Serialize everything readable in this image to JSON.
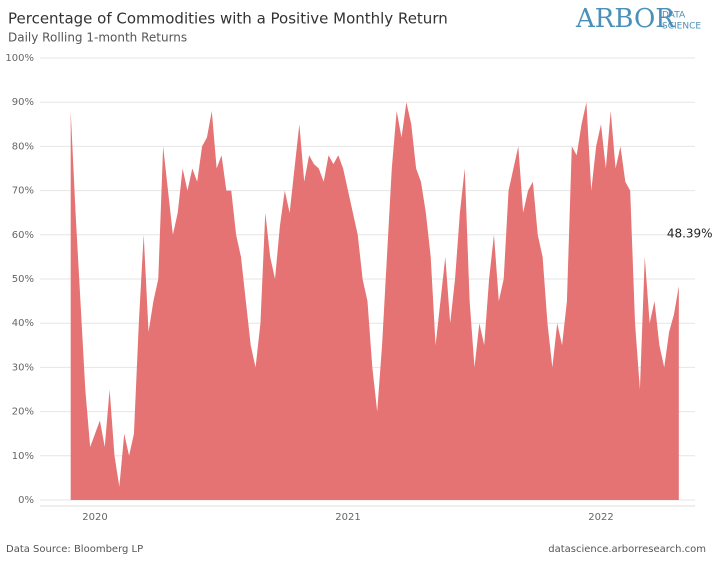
{
  "chart_data": {
    "type": "area",
    "title": "Percentage of Commodities with a Positive Monthly Return",
    "subtitle": "Daily Rolling 1-month Returns",
    "logo": {
      "main": "ARBOR",
      "sub": [
        "DATA",
        "SCIENCE"
      ]
    },
    "source": "Data Source: Bloomberg LP",
    "url": "datascience.arborresearch.com",
    "color": "#e57373",
    "grid": true,
    "ylim": [
      0,
      100
    ],
    "yticks": [
      {
        "value": 0,
        "label": "0%"
      },
      {
        "value": 10,
        "label": "10%"
      },
      {
        "value": 20,
        "label": "20%"
      },
      {
        "value": 30,
        "label": "30%"
      },
      {
        "value": 40,
        "label": "40%"
      },
      {
        "value": 50,
        "label": "50%"
      },
      {
        "value": 60,
        "label": "60%"
      },
      {
        "value": 70,
        "label": "70%"
      },
      {
        "value": 80,
        "label": "80%"
      },
      {
        "value": 90,
        "label": "90%"
      },
      {
        "value": 100,
        "label": "100%"
      }
    ],
    "categories": [
      null,
      null,
      null,
      null,
      null,
      "2020",
      null,
      null,
      null,
      null,
      null,
      null,
      null,
      null,
      null,
      null,
      null,
      null,
      null,
      null,
      null,
      null,
      null,
      null,
      null,
      null,
      null,
      null,
      null,
      null,
      null,
      null,
      null,
      null,
      null,
      null,
      null,
      null,
      null,
      null,
      null,
      null,
      null,
      null,
      null,
      null,
      null,
      null,
      null,
      null,
      null,
      null,
      null,
      null,
      null,
      null,
      null,
      "2021",
      null,
      null,
      null,
      null,
      null,
      null,
      null,
      null,
      null,
      null,
      null,
      null,
      null,
      null,
      null,
      null,
      null,
      null,
      null,
      null,
      null,
      null,
      null,
      null,
      null,
      null,
      null,
      null,
      null,
      null,
      null,
      null,
      null,
      null,
      null,
      null,
      null,
      null,
      null,
      null,
      null,
      null,
      null,
      null,
      null,
      null,
      null,
      null,
      null,
      null,
      null,
      "2022",
      null,
      null,
      null,
      null,
      null,
      null,
      null,
      null,
      null,
      null,
      null,
      null,
      null,
      null,
      null,
      null
    ],
    "values": [
      88,
      65,
      45,
      25,
      12,
      15,
      18,
      12,
      25,
      10,
      3,
      15,
      10,
      15,
      40,
      60,
      38,
      45,
      50,
      80,
      70,
      60,
      65,
      75,
      70,
      75,
      72,
      80,
      82,
      88,
      75,
      78,
      70,
      70,
      60,
      55,
      45,
      35,
      30,
      40,
      65,
      55,
      50,
      62,
      70,
      65,
      75,
      85,
      72,
      78,
      76,
      75,
      72,
      78,
      76,
      78,
      75,
      70,
      65,
      60,
      50,
      45,
      30,
      20,
      35,
      55,
      75,
      88,
      82,
      90,
      85,
      75,
      72,
      65,
      55,
      35,
      45,
      55,
      40,
      50,
      65,
      75,
      45,
      30,
      40,
      35,
      50,
      60,
      45,
      50,
      70,
      75,
      80,
      65,
      70,
      72,
      60,
      55,
      40,
      30,
      40,
      35,
      45,
      80,
      78,
      85,
      90,
      70,
      80,
      85,
      75,
      88,
      75,
      80,
      72,
      70,
      40,
      25,
      55,
      40,
      45,
      35,
      30,
      38,
      42,
      48.39
    ],
    "value_labels": [
      null,
      null,
      null,
      null,
      null,
      null,
      null,
      null,
      null,
      null,
      null,
      null,
      null,
      null,
      null,
      null,
      null,
      null,
      null,
      null,
      null,
      null,
      null,
      null,
      null,
      null,
      null,
      null,
      null,
      null,
      null,
      null,
      null,
      null,
      null,
      null,
      null,
      null,
      null,
      null,
      null,
      null,
      null,
      null,
      null,
      null,
      null,
      null,
      null,
      null,
      null,
      null,
      null,
      null,
      null,
      null,
      null,
      null,
      null,
      null,
      null,
      null,
      null,
      null,
      null,
      null,
      null,
      null,
      null,
      null,
      null,
      null,
      null,
      null,
      null,
      null,
      null,
      null,
      null,
      null,
      null,
      null,
      null,
      null,
      null,
      null,
      null,
      null,
      null,
      null,
      null,
      null,
      null,
      null,
      null,
      null,
      null,
      null,
      null,
      null,
      null,
      null,
      null,
      null,
      null,
      null,
      null,
      null,
      null,
      null,
      null,
      null,
      null,
      null,
      null,
      null,
      null,
      null,
      null,
      null,
      null,
      null,
      null,
      null,
      null,
      "48.39%"
    ]
  }
}
